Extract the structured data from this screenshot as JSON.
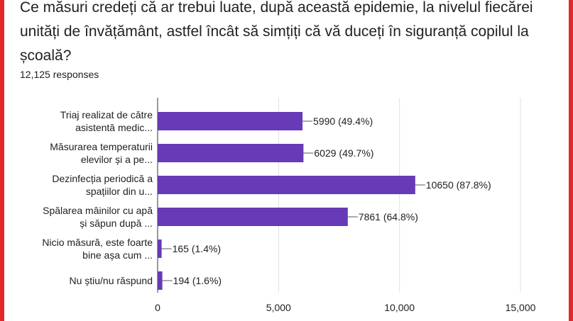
{
  "question": "Ce măsuri credeți că ar trebui luate, după această epidemie, la nivelul fiecărei unități de învățământ, astfel încât să simțiți că vă duceți în siguranță copilul la școală?",
  "responses": "12,125 responses",
  "colors": {
    "bar": "#673ab7",
    "frame": "#e3262b",
    "grid": "#e0e0e0"
  },
  "chart_data": {
    "type": "bar",
    "orientation": "horizontal",
    "categories": [
      [
        "Triaj realizat de către",
        "asistentă medic..."
      ],
      [
        "Măsurarea temperaturii",
        "elevilor și a pe..."
      ],
      [
        "Dezinfecția periodică a",
        "spațiilor din u..."
      ],
      [
        "Spălarea mâinilor cu apă",
        "și săpun după ..."
      ],
      [
        "Nicio măsură, este foarte",
        "bine așa cum ..."
      ],
      [
        "Nu știu/nu răspund"
      ]
    ],
    "values": [
      5990,
      6029,
      10650,
      7861,
      165,
      194
    ],
    "data_labels": [
      "5990 (49.4%)",
      "6029 (49.7%)",
      "10650 (87.8%)",
      "7861 (64.8%)",
      "165 (1.4%)",
      "194 (1.6%)"
    ],
    "xlim": [
      0,
      15000
    ],
    "xticks": [
      0,
      5000,
      10000,
      15000
    ],
    "xtick_labels": [
      "0",
      "5,000",
      "10,000",
      "15,000"
    ],
    "grid": true
  }
}
